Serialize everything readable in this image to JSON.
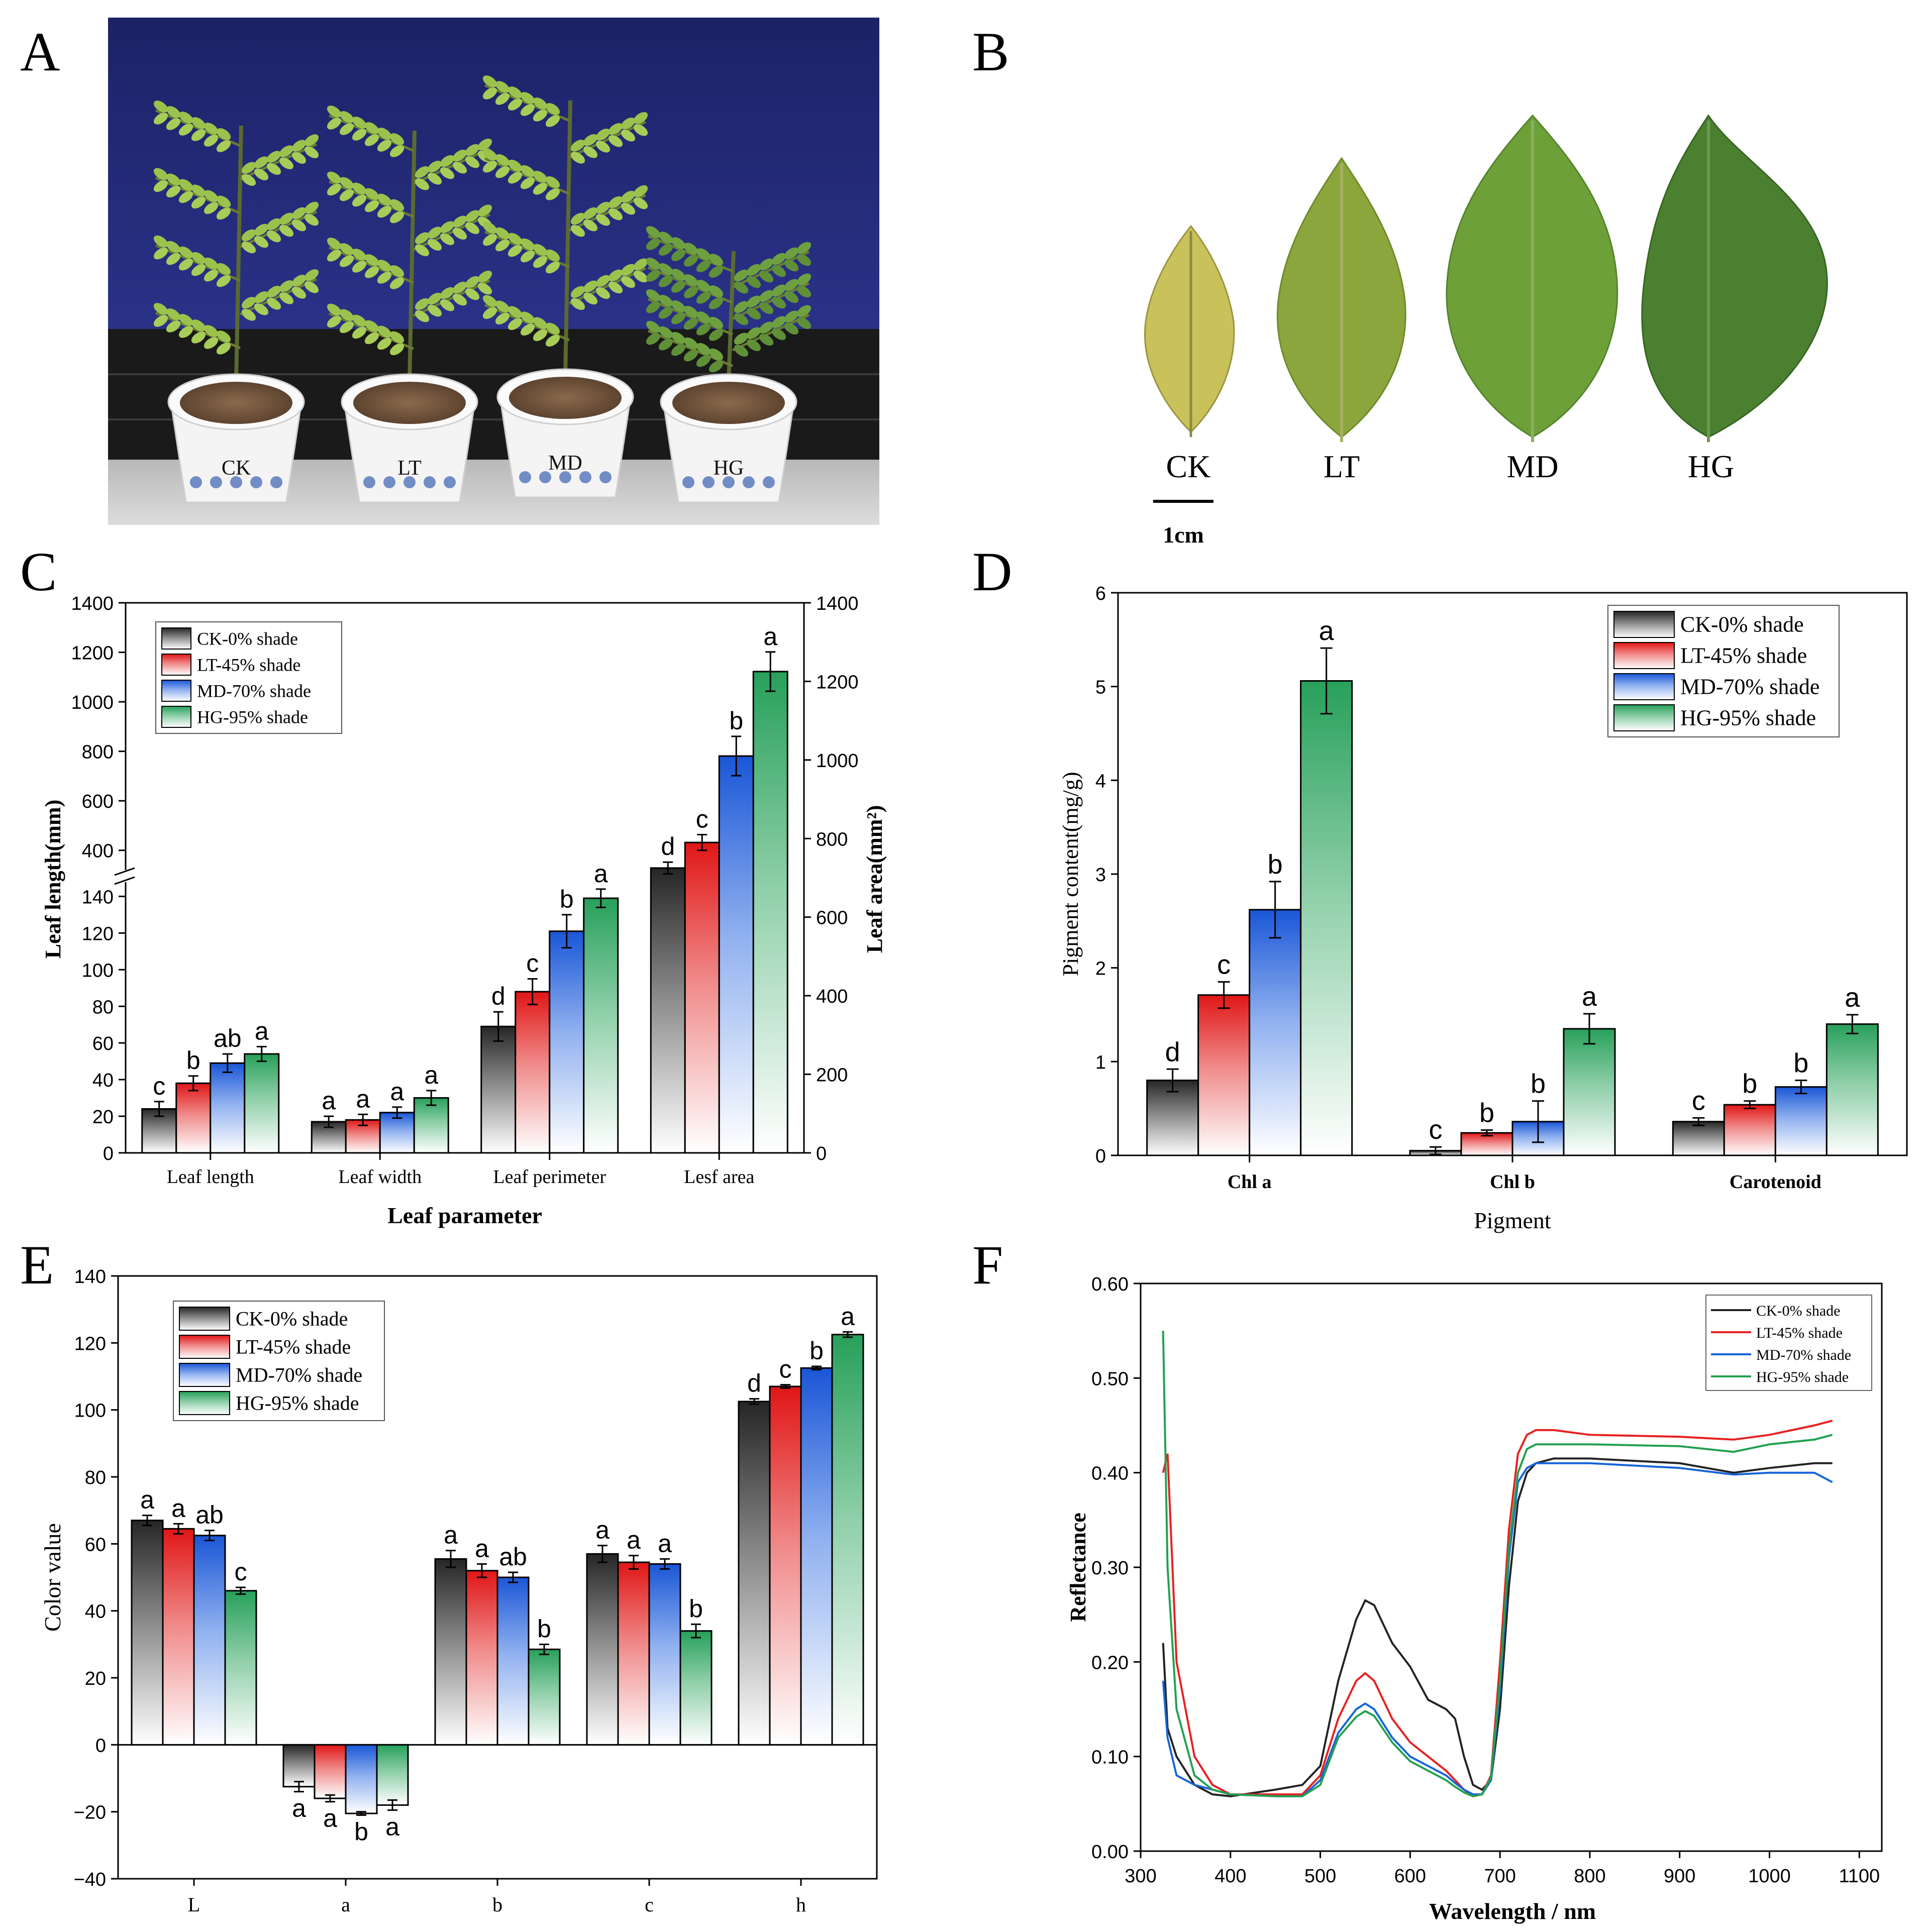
{
  "panels": {
    "A": {
      "label": "A",
      "pot_labels": [
        "CK",
        "LT",
        "MD",
        "HG"
      ]
    },
    "B": {
      "label": "B",
      "leaf_labels": [
        "CK",
        "LT",
        "MD",
        "HG"
      ],
      "scale_label": "1cm"
    },
    "C": {
      "label": "C"
    },
    "D": {
      "label": "D"
    },
    "E": {
      "label": "E"
    },
    "F": {
      "label": "F"
    }
  },
  "legend": {
    "series": [
      "CK-0% shade",
      "LT-45% shade",
      "MD-70% shade",
      "HG-95% shade"
    ],
    "colors": [
      "#2e2e2e",
      "#e02020",
      "#1f5fd8",
      "#2e9a58"
    ],
    "line_colors": [
      "#222222",
      "#e82020",
      "#1565d8",
      "#22a050"
    ]
  },
  "chart_data": [
    {
      "panel": "C",
      "type": "bar",
      "title": "",
      "xlabel": "Leaf parameter",
      "ylabel": "Leaf length(mm)",
      "y2label": "Leaf area(mm²)",
      "categories": [
        "Leaf length",
        "Leaf width",
        "Leaf perimeter",
        "Lesf area"
      ],
      "y_lower_ticks": [
        "0",
        "20",
        "40",
        "60",
        "80",
        "100",
        "120",
        "140"
      ],
      "y_upper_ticks": [
        "400",
        "600",
        "800",
        "1000",
        "1200",
        "1400"
      ],
      "y2_ticks": [
        "0",
        "200",
        "400",
        "600",
        "800",
        "1000",
        "1200",
        "1400"
      ],
      "axis_break": true,
      "legend_position": "top-left",
      "series": [
        {
          "name": "CK-0% shade",
          "values": [
            24,
            17,
            69,
            725
          ],
          "errors": [
            4,
            3,
            8,
            15
          ],
          "letters": [
            "c",
            "a",
            "d",
            "d"
          ]
        },
        {
          "name": "LT-45% shade",
          "values": [
            38,
            18,
            88,
            790
          ],
          "errors": [
            4,
            3,
            7,
            20
          ],
          "letters": [
            "b",
            "a",
            "c",
            "c"
          ]
        },
        {
          "name": "MD-70% shade",
          "values": [
            49,
            22,
            121,
            1010
          ],
          "errors": [
            5,
            3,
            9,
            50
          ],
          "letters": [
            "ab",
            "a",
            "b",
            "b"
          ]
        },
        {
          "name": "HG-95% shade",
          "values": [
            54,
            30,
            139,
            1225
          ],
          "errors": [
            4,
            4,
            5,
            50
          ],
          "letters": [
            "a",
            "a",
            "a",
            "a"
          ]
        }
      ]
    },
    {
      "panel": "D",
      "type": "bar",
      "title": "",
      "xlabel": "Pigment",
      "ylabel": "Pigment content(mg/g)",
      "categories": [
        "Chl a",
        "Chl b",
        "Carotenoid"
      ],
      "y_ticks": [
        "0",
        "1",
        "2",
        "3",
        "4",
        "5",
        "6"
      ],
      "ylim": [
        0,
        6
      ],
      "legend_position": "top-right",
      "series": [
        {
          "name": "CK-0% shade",
          "values": [
            0.8,
            0.05,
            0.36
          ],
          "errors": [
            0.12,
            0.04,
            0.04
          ],
          "letters": [
            "d",
            "c",
            "c"
          ]
        },
        {
          "name": "LT-45% shade",
          "values": [
            1.71,
            0.24,
            0.54
          ],
          "errors": [
            0.14,
            0.03,
            0.04
          ],
          "letters": [
            "c",
            "b",
            "b"
          ]
        },
        {
          "name": "MD-70% shade",
          "values": [
            2.62,
            0.36,
            0.73
          ],
          "errors": [
            0.3,
            0.22,
            0.07
          ],
          "letters": [
            "b",
            "b",
            "b"
          ]
        },
        {
          "name": "HG-95% shade",
          "values": [
            5.06,
            1.35,
            1.4
          ],
          "errors": [
            0.35,
            0.16,
            0.1
          ],
          "letters": [
            "a",
            "a",
            "a"
          ]
        }
      ]
    },
    {
      "panel": "E",
      "type": "bar",
      "title": "",
      "xlabel": "",
      "ylabel": "Color value",
      "categories": [
        "L",
        "a",
        "b",
        "c",
        "h"
      ],
      "y_ticks": [
        "−40",
        "−20",
        "0",
        "20",
        "40",
        "60",
        "80",
        "100",
        "120",
        "140"
      ],
      "ylim": [
        -40,
        140
      ],
      "legend_position": "top-left",
      "series": [
        {
          "name": "CK-0% shade",
          "values": [
            67,
            -12.5,
            55.5,
            57,
            102.5
          ],
          "errors": [
            1.5,
            1.5,
            2.5,
            2.5,
            0.8
          ],
          "letters": [
            "a",
            "a",
            "a",
            "a",
            "d"
          ]
        },
        {
          "name": "LT-45% shade",
          "values": [
            64.5,
            -16,
            52,
            54.5,
            107
          ],
          "errors": [
            1.5,
            1,
            2,
            2,
            0.5
          ],
          "letters": [
            "a",
            "a",
            "a",
            "a",
            "c"
          ]
        },
        {
          "name": "MD-70% shade",
          "values": [
            62.5,
            -20.5,
            50,
            54,
            112.5
          ],
          "errors": [
            1.5,
            0.5,
            1.5,
            1.5,
            0.5
          ],
          "letters": [
            "ab",
            "b",
            "ab",
            "a",
            "b"
          ]
        },
        {
          "name": "HG-95% shade",
          "values": [
            46,
            -18,
            28.5,
            34,
            122.5
          ],
          "errors": [
            1,
            1.5,
            1.5,
            2,
            0.8
          ],
          "letters": [
            "c",
            "a",
            "b",
            "b",
            "a"
          ]
        }
      ]
    },
    {
      "panel": "F",
      "type": "line",
      "title": "",
      "xlabel": "Wavelength / nm",
      "ylabel": "Reflectance",
      "x_ticks": [
        "300",
        "400",
        "500",
        "600",
        "700",
        "800",
        "900",
        "1000",
        "1100"
      ],
      "y_ticks": [
        "0.00",
        "0.10",
        "0.20",
        "0.30",
        "0.40",
        "0.50",
        "0.60"
      ],
      "xlim": [
        300,
        1125
      ],
      "ylim": [
        0,
        0.6
      ],
      "legend_position": "top-right",
      "series": [
        {
          "name": "CK-0% shade",
          "x": [
            325,
            330,
            340,
            360,
            380,
            400,
            450,
            480,
            500,
            520,
            540,
            550,
            560,
            580,
            600,
            620,
            640,
            650,
            660,
            670,
            680,
            690,
            700,
            710,
            720,
            730,
            740,
            760,
            800,
            900,
            960,
            1000,
            1050,
            1070
          ],
          "y": [
            0.22,
            0.13,
            0.1,
            0.07,
            0.06,
            0.058,
            0.065,
            0.07,
            0.09,
            0.18,
            0.245,
            0.265,
            0.26,
            0.22,
            0.195,
            0.16,
            0.15,
            0.14,
            0.1,
            0.07,
            0.065,
            0.075,
            0.15,
            0.28,
            0.37,
            0.4,
            0.41,
            0.415,
            0.415,
            0.41,
            0.4,
            0.405,
            0.41,
            0.41
          ]
        },
        {
          "name": "LT-45% shade",
          "x": [
            325,
            330,
            340,
            360,
            380,
            400,
            450,
            480,
            500,
            520,
            540,
            550,
            560,
            580,
            600,
            620,
            640,
            650,
            660,
            670,
            680,
            690,
            700,
            710,
            720,
            730,
            740,
            760,
            800,
            900,
            960,
            1000,
            1050,
            1070
          ],
          "y": [
            0.4,
            0.42,
            0.2,
            0.1,
            0.07,
            0.06,
            0.06,
            0.06,
            0.08,
            0.14,
            0.18,
            0.188,
            0.18,
            0.14,
            0.115,
            0.1,
            0.085,
            0.075,
            0.065,
            0.058,
            0.06,
            0.08,
            0.2,
            0.34,
            0.42,
            0.44,
            0.445,
            0.445,
            0.44,
            0.438,
            0.435,
            0.44,
            0.45,
            0.455
          ]
        },
        {
          "name": "MD-70% shade",
          "x": [
            325,
            330,
            340,
            360,
            380,
            400,
            450,
            480,
            500,
            520,
            540,
            550,
            560,
            580,
            600,
            620,
            640,
            650,
            660,
            670,
            680,
            690,
            700,
            710,
            720,
            730,
            740,
            760,
            800,
            900,
            960,
            1000,
            1050,
            1070
          ],
          "y": [
            0.18,
            0.12,
            0.08,
            0.07,
            0.065,
            0.06,
            0.058,
            0.058,
            0.075,
            0.125,
            0.15,
            0.156,
            0.15,
            0.12,
            0.1,
            0.09,
            0.08,
            0.072,
            0.065,
            0.06,
            0.06,
            0.075,
            0.17,
            0.31,
            0.39,
            0.405,
            0.41,
            0.41,
            0.41,
            0.405,
            0.398,
            0.4,
            0.4,
            0.39
          ]
        },
        {
          "name": "HG-95% shade",
          "x": [
            325,
            330,
            340,
            360,
            380,
            400,
            450,
            480,
            500,
            520,
            540,
            550,
            560,
            580,
            600,
            620,
            640,
            650,
            660,
            670,
            680,
            690,
            700,
            710,
            720,
            730,
            740,
            760,
            800,
            900,
            960,
            1000,
            1050,
            1070
          ],
          "y": [
            0.55,
            0.3,
            0.15,
            0.08,
            0.065,
            0.06,
            0.058,
            0.058,
            0.07,
            0.12,
            0.142,
            0.148,
            0.143,
            0.115,
            0.095,
            0.085,
            0.075,
            0.068,
            0.062,
            0.058,
            0.06,
            0.078,
            0.18,
            0.32,
            0.4,
            0.425,
            0.43,
            0.43,
            0.43,
            0.428,
            0.422,
            0.43,
            0.435,
            0.44
          ]
        }
      ]
    }
  ]
}
